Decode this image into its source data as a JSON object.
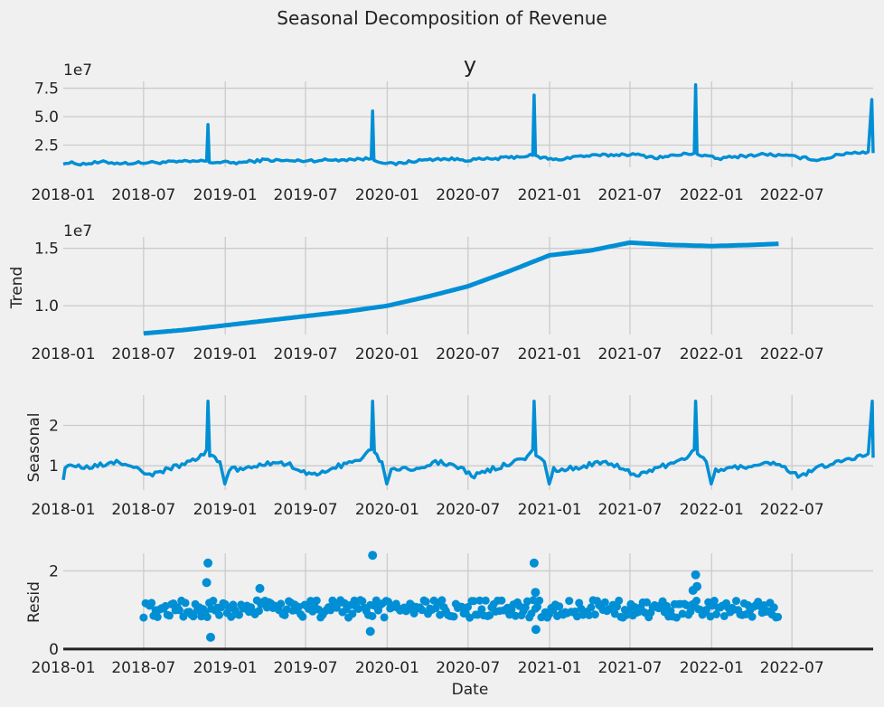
{
  "chart_data": {
    "type": "line",
    "title": "Seasonal Decomposition of Revenue",
    "xlabel": "Date",
    "x_ticks": [
      "2018-01",
      "2018-07",
      "2019-01",
      "2019-07",
      "2020-01",
      "2020-07",
      "2021-01",
      "2021-07",
      "2022-01",
      "2022-07"
    ],
    "x_range": [
      "2018-01-01",
      "2022-12-31"
    ],
    "colors": {
      "line": "#008fd5",
      "background": "#f0f0f0",
      "grid": "#cbcbcb",
      "zero_line": "#222222"
    },
    "panels": [
      {
        "key": "observed",
        "title": "y",
        "ylabel": "",
        "scale_label": "1e7",
        "style": "line",
        "ylim": [
          0.55,
          8.1
        ],
        "yticks": [
          2.5,
          5.0,
          7.5
        ],
        "ytick_labels": [
          "2.5",
          "5.0",
          "7.5"
        ],
        "points": [
          [
            "2018-01-01",
            0.95
          ],
          [
            "2018-02-15",
            0.85
          ],
          [
            "2018-04-01",
            1.0
          ],
          [
            "2018-05-15",
            0.9
          ],
          [
            "2018-07-01",
            0.95
          ],
          [
            "2018-09-01",
            1.0
          ],
          [
            "2018-11-20",
            1.1
          ],
          [
            "2018-11-23",
            4.3
          ],
          [
            "2018-11-26",
            1.0
          ],
          [
            "2019-02-01",
            0.95
          ],
          [
            "2019-04-01",
            1.2
          ],
          [
            "2019-06-01",
            1.1
          ],
          [
            "2019-09-01",
            1.2
          ],
          [
            "2019-11-26",
            1.3
          ],
          [
            "2019-11-29",
            5.5
          ],
          [
            "2019-12-02",
            1.2
          ],
          [
            "2020-01-15",
            0.8
          ],
          [
            "2020-03-01",
            1.1
          ],
          [
            "2020-05-01",
            1.3
          ],
          [
            "2020-07-01",
            1.2
          ],
          [
            "2020-09-01",
            1.3
          ],
          [
            "2020-11-24",
            1.6
          ],
          [
            "2020-11-27",
            6.9
          ],
          [
            "2020-11-30",
            1.5
          ],
          [
            "2021-01-15",
            1.2
          ],
          [
            "2021-03-01",
            1.5
          ],
          [
            "2021-05-01",
            1.6
          ],
          [
            "2021-07-01",
            1.7
          ],
          [
            "2021-09-01",
            1.4
          ],
          [
            "2021-11-23",
            1.8
          ],
          [
            "2021-11-26",
            7.8
          ],
          [
            "2021-11-29",
            1.7
          ],
          [
            "2022-01-15",
            1.3
          ],
          [
            "2022-03-01",
            1.5
          ],
          [
            "2022-05-01",
            1.7
          ],
          [
            "2022-07-01",
            1.5
          ],
          [
            "2022-09-01",
            1.2
          ],
          [
            "2022-11-01",
            1.8
          ],
          [
            "2022-12-20",
            1.9
          ],
          [
            "2022-12-28",
            6.5
          ],
          [
            "2022-12-31",
            1.8
          ]
        ]
      },
      {
        "key": "trend",
        "title": "",
        "ylabel": "Trend",
        "scale_label": "1e7",
        "style": "line",
        "ylim": [
          0.75,
          1.6
        ],
        "yticks": [
          1.0,
          1.5
        ],
        "ytick_labels": [
          "1.0",
          "1.5"
        ],
        "points": [
          [
            "2018-07-01",
            0.76
          ],
          [
            "2018-10-01",
            0.79
          ],
          [
            "2019-01-01",
            0.83
          ],
          [
            "2019-04-01",
            0.87
          ],
          [
            "2019-07-01",
            0.91
          ],
          [
            "2019-10-01",
            0.95
          ],
          [
            "2020-01-01",
            1.0
          ],
          [
            "2020-04-01",
            1.08
          ],
          [
            "2020-07-01",
            1.17
          ],
          [
            "2020-10-01",
            1.3
          ],
          [
            "2021-01-01",
            1.44
          ],
          [
            "2021-04-01",
            1.48
          ],
          [
            "2021-07-01",
            1.55
          ],
          [
            "2021-10-01",
            1.53
          ],
          [
            "2022-01-01",
            1.52
          ],
          [
            "2022-04-01",
            1.53
          ],
          [
            "2022-06-01",
            1.54
          ]
        ]
      },
      {
        "key": "seasonal",
        "title": "",
        "ylabel": "Seasonal",
        "scale_label": "",
        "style": "line",
        "ylim": [
          0.4,
          2.75
        ],
        "yticks": [
          1,
          2
        ],
        "ytick_labels": [
          "1",
          "2"
        ],
        "points": [
          [
            "2018-01-01",
            0.65
          ],
          [
            "2018-01-05",
            1.0
          ],
          [
            "2018-03-01",
            0.95
          ],
          [
            "2018-05-01",
            1.1
          ],
          [
            "2018-06-15",
            0.95
          ],
          [
            "2018-07-15",
            0.75
          ],
          [
            "2018-09-01",
            0.95
          ],
          [
            "2018-11-01",
            1.15
          ],
          [
            "2018-11-20",
            1.4
          ],
          [
            "2018-11-23",
            2.6
          ],
          [
            "2018-11-27",
            1.3
          ],
          [
            "2018-12-20",
            1.1
          ],
          [
            "2018-12-31",
            0.55
          ],
          [
            "2019-01-10",
            0.9
          ],
          [
            "2019-03-01",
            0.95
          ],
          [
            "2019-05-01",
            1.1
          ],
          [
            "2019-06-15",
            0.95
          ],
          [
            "2019-07-15",
            0.75
          ],
          [
            "2019-09-01",
            0.95
          ],
          [
            "2019-11-01",
            1.15
          ],
          [
            "2019-11-26",
            1.4
          ],
          [
            "2019-11-29",
            2.6
          ],
          [
            "2019-12-03",
            1.3
          ],
          [
            "2019-12-20",
            1.1
          ],
          [
            "2019-12-31",
            0.55
          ],
          [
            "2020-01-10",
            0.9
          ],
          [
            "2020-03-01",
            0.95
          ],
          [
            "2020-05-01",
            1.1
          ],
          [
            "2020-06-15",
            0.95
          ],
          [
            "2020-07-15",
            0.75
          ],
          [
            "2020-09-01",
            0.95
          ],
          [
            "2020-11-01",
            1.15
          ],
          [
            "2020-11-24",
            1.4
          ],
          [
            "2020-11-27",
            2.6
          ],
          [
            "2020-12-01",
            1.3
          ],
          [
            "2020-12-20",
            1.1
          ],
          [
            "2020-12-31",
            0.55
          ],
          [
            "2021-01-10",
            0.9
          ],
          [
            "2021-03-01",
            0.95
          ],
          [
            "2021-05-01",
            1.1
          ],
          [
            "2021-06-15",
            0.95
          ],
          [
            "2021-07-15",
            0.75
          ],
          [
            "2021-09-01",
            0.95
          ],
          [
            "2021-11-01",
            1.15
          ],
          [
            "2021-11-23",
            1.4
          ],
          [
            "2021-11-26",
            2.6
          ],
          [
            "2021-11-30",
            1.3
          ],
          [
            "2021-12-20",
            1.1
          ],
          [
            "2021-12-31",
            0.55
          ],
          [
            "2022-01-10",
            0.9
          ],
          [
            "2022-03-01",
            0.95
          ],
          [
            "2022-05-01",
            1.1
          ],
          [
            "2022-06-15",
            0.95
          ],
          [
            "2022-07-15",
            0.75
          ],
          [
            "2022-09-01",
            0.95
          ],
          [
            "2022-11-01",
            1.15
          ],
          [
            "2022-12-20",
            1.3
          ],
          [
            "2022-12-29",
            2.6
          ],
          [
            "2022-12-31",
            1.2
          ]
        ]
      },
      {
        "key": "resid",
        "title": "",
        "ylabel": "Resid",
        "scale_label": "",
        "style": "scatter",
        "ylim": [
          -0.05,
          2.45
        ],
        "yticks": [
          0,
          2
        ],
        "ytick_labels": [
          "0",
          "2"
        ],
        "baseline": 0,
        "range": [
          "2018-07-01",
          "2022-06-01"
        ],
        "band": [
          0.8,
          1.25
        ],
        "outliers": [
          [
            "2018-11-23",
            2.2
          ],
          [
            "2018-11-20",
            1.7
          ],
          [
            "2018-11-29",
            0.3
          ],
          [
            "2019-03-20",
            1.55
          ],
          [
            "2019-11-29",
            2.4
          ],
          [
            "2019-11-24",
            0.45
          ],
          [
            "2020-11-27",
            2.2
          ],
          [
            "2020-11-30",
            1.45
          ],
          [
            "2020-12-01",
            0.5
          ],
          [
            "2021-11-26",
            1.9
          ],
          [
            "2021-11-29",
            1.6
          ],
          [
            "2021-11-20",
            1.5
          ]
        ]
      }
    ]
  }
}
